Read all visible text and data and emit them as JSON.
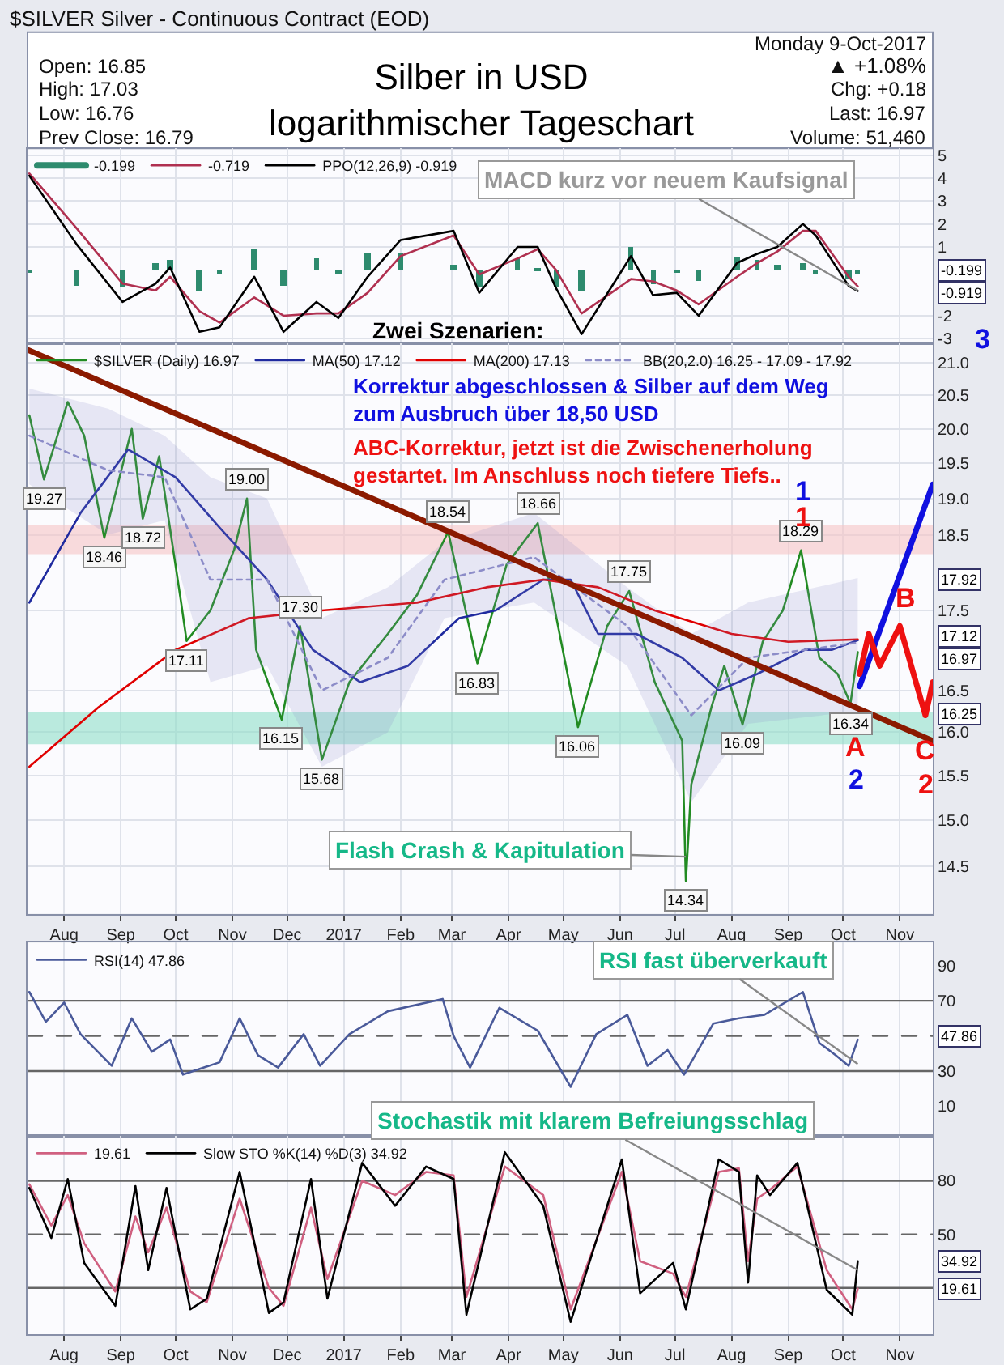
{
  "chart_data": [
    {
      "type": "other",
      "title": "Silber in USD\nlogarithmischer Tageschart",
      "annotations": [
        "$SILVER Silver - Continuous Contract (EOD)",
        "Open: 16.85",
        "High: 17.03",
        "Low: 16.76",
        "Prev Close: 16.79",
        "Monday 9-Oct-2017",
        "▲ +1.08%",
        "Chg: +0.18",
        "Last: 16.97",
        "Volume: 51,460"
      ]
    },
    {
      "type": "line",
      "legend": "top left",
      "grid": true,
      "tick_labels": "y",
      "xlim": [
        "2016-07-12",
        "2017-11-19"
      ],
      "xticks": [
        {
          "value": "2016-08-01",
          "label": null
        },
        {
          "value": "2016-09-01",
          "label": null
        },
        {
          "value": "2016-10-01",
          "label": null
        },
        {
          "value": "2016-11-01",
          "label": null
        },
        {
          "value": "2016-12-01",
          "label": null
        },
        {
          "value": "2017-01-01",
          "label": null
        },
        {
          "value": "2017-02-01",
          "label": null
        },
        {
          "value": "2017-03-01",
          "label": null
        },
        {
          "value": "2017-04-01",
          "label": null
        },
        {
          "value": "2017-05-01",
          "label": null
        },
        {
          "value": "2017-06-01",
          "label": null
        },
        {
          "value": "2017-07-01",
          "label": null
        },
        {
          "value": "2017-08-01",
          "label": null
        },
        {
          "value": "2017-09-01",
          "label": null
        },
        {
          "value": "2017-10-01",
          "label": null
        },
        {
          "value": "2017-11-01",
          "label": null
        }
      ],
      "ylim": [
        -3.2,
        5.3
      ],
      "yticks": [
        -3,
        -2,
        1,
        2,
        3,
        4,
        5
      ],
      "x": [
        "2016-07-13",
        "2016-08-08",
        "2016-09-02",
        "2016-09-20",
        "2016-09-28",
        "2016-10-14",
        "2016-10-25",
        "2016-11-13",
        "2016-11-29",
        "2016-12-17",
        "2016-12-29",
        "2017-01-14",
        "2017-02-01",
        "2017-03-02",
        "2017-03-16",
        "2017-04-06",
        "2017-04-17",
        "2017-04-27",
        "2017-05-11",
        "2017-06-07",
        "2017-06-19",
        "2017-07-02",
        "2017-07-14",
        "2017-08-04",
        "2017-08-15",
        "2017-08-26",
        "2017-09-09",
        "2017-09-16",
        "2017-10-04",
        "2017-10-09"
      ],
      "series": [
        {
          "name": "-0.199",
          "type": "bar",
          "color": "#2e8b6e",
          "values": [
            -0.1,
            -0.7,
            -0.8,
            0.3,
            0.4,
            -0.9,
            -0.2,
            0.9,
            -0.7,
            0.5,
            -0.2,
            0.7,
            0.7,
            0.2,
            -0.8,
            0.5,
            0.1,
            -0.8,
            -0.9,
            1.0,
            -0.6,
            -0.1,
            -0.5,
            0.6,
            0.4,
            0.2,
            0.3,
            -0.2,
            -0.4,
            -0.199
          ]
        },
        {
          "name": "-0.719",
          "color": "#b03050",
          "values": [
            4.2,
            1.8,
            -0.6,
            -0.9,
            -0.3,
            -1.8,
            -2.3,
            -1.2,
            -2.0,
            -1.9,
            -1.9,
            -1.0,
            0.6,
            1.5,
            -0.2,
            0.5,
            0.9,
            0.0,
            -1.9,
            -0.4,
            -0.5,
            -0.9,
            -1.5,
            -0.3,
            0.3,
            0.8,
            1.7,
            1.7,
            -0.3,
            -0.719
          ]
        },
        {
          "name": "PPO(12,26,9) -0.919",
          "color": "#000000",
          "values": [
            4.1,
            1.1,
            -1.4,
            -0.6,
            0.1,
            -2.7,
            -2.5,
            -0.3,
            -2.7,
            -1.4,
            -2.1,
            -0.3,
            1.3,
            1.7,
            -1.0,
            1.0,
            1.0,
            -0.8,
            -2.8,
            0.6,
            -1.1,
            -1.0,
            -2.0,
            0.3,
            0.7,
            1.0,
            2.0,
            1.5,
            -0.7,
            -0.919
          ]
        }
      ],
      "annotations": [
        {
          "text": "MACD kurz vor neuem Kaufsignal",
          "x": "2017-10-09",
          "y": -0.9
        },
        "-0.199",
        "-0.919"
      ]
    },
    {
      "type": "line",
      "log": true,
      "legend": "top left",
      "grid": true,
      "xlim": [
        "2016-07-12",
        "2017-11-19"
      ],
      "xticks": [
        {
          "value": "2016-08-01",
          "label": "Aug"
        },
        {
          "value": "2016-09-01",
          "label": "Sep"
        },
        {
          "value": "2016-10-01",
          "label": "Oct"
        },
        {
          "value": "2016-11-01",
          "label": "Nov"
        },
        {
          "value": "2016-12-01",
          "label": "Dec"
        },
        {
          "value": "2017-01-01",
          "label": "2017"
        },
        {
          "value": "2017-02-01",
          "label": "Feb"
        },
        {
          "value": "2017-03-01",
          "label": "Mar"
        },
        {
          "value": "2017-04-01",
          "label": "Apr"
        },
        {
          "value": "2017-05-01",
          "label": "May"
        },
        {
          "value": "2017-06-01",
          "label": "Jun"
        },
        {
          "value": "2017-07-01",
          "label": "Jul"
        },
        {
          "value": "2017-08-01",
          "label": "Aug"
        },
        {
          "value": "2017-09-01",
          "label": "Sep"
        },
        {
          "value": "2017-10-01",
          "label": "Oct"
        },
        {
          "value": "2017-11-01",
          "label": "Nov"
        }
      ],
      "ylim": [
        14.0,
        21.3
      ],
      "yticks": [
        14.5,
        {
          "value": 15,
          "label": "15.0"
        },
        15.5,
        {
          "value": 16,
          "label": "16.0"
        },
        16.5,
        17.5,
        18.5,
        {
          "value": 19,
          "label": "19.0"
        },
        19.5,
        {
          "value": 20,
          "label": "20.0"
        },
        20.5,
        {
          "value": 21,
          "label": "21.0"
        }
      ],
      "bands": [
        {
          "axis": "y",
          "from": 18.24,
          "to": 18.63,
          "color": "#f6c4c4"
        },
        {
          "axis": "y",
          "from": 15.86,
          "to": 16.24,
          "color": "#8fe0c8"
        }
      ],
      "series": [
        {
          "name": "$SILVER (Daily) 16.97",
          "color": "#228b22",
          "x": [
            "2016-07-13",
            "2016-07-21",
            "2016-08-03",
            "2016-08-12",
            "2016-08-23",
            "2016-09-07",
            "2016-09-13",
            "2016-09-22",
            "2016-10-04",
            "2016-10-07",
            "2016-10-20",
            "2016-11-02",
            "2016-11-09",
            "2016-11-14",
            "2016-11-28",
            "2016-12-08",
            "2016-12-20",
            "2017-01-04",
            "2017-01-25",
            "2017-02-10",
            "2017-02-27",
            "2017-03-15",
            "2017-03-31",
            "2017-04-17",
            "2017-05-09",
            "2017-05-25",
            "2017-06-06",
            "2017-06-20",
            "2017-07-05",
            "2017-07-07",
            "2017-07-10",
            "2017-07-21",
            "2017-07-28",
            "2017-08-07",
            "2017-08-18",
            "2017-08-29",
            "2017-09-08",
            "2017-09-18",
            "2017-09-28",
            "2017-10-05",
            "2017-10-09"
          ],
          "values": [
            20.2,
            19.27,
            20.4,
            19.9,
            18.46,
            20.0,
            18.72,
            19.6,
            17.6,
            17.11,
            17.5,
            18.3,
            19.0,
            17.0,
            16.15,
            17.3,
            15.68,
            16.6,
            17.2,
            17.7,
            18.54,
            16.83,
            18.1,
            18.66,
            16.06,
            17.3,
            17.75,
            16.6,
            15.9,
            14.34,
            15.4,
            16.3,
            16.8,
            16.09,
            17.1,
            17.5,
            18.29,
            16.9,
            16.7,
            16.34,
            16.97
          ]
        },
        {
          "name": "MA(50) 17.12",
          "color": "#1f2a9f",
          "x": [
            "2016-07-13",
            "2016-08-10",
            "2016-09-05",
            "2016-10-01",
            "2016-10-25",
            "2016-11-20",
            "2016-12-15",
            "2017-01-10",
            "2017-02-05",
            "2017-03-05",
            "2017-03-25",
            "2017-04-20",
            "2017-05-05",
            "2017-05-20",
            "2017-06-10",
            "2017-07-05",
            "2017-07-25",
            "2017-08-15",
            "2017-09-10",
            "2017-09-25",
            "2017-10-09"
          ],
          "values": [
            17.6,
            18.8,
            19.7,
            19.3,
            18.6,
            17.9,
            17.0,
            16.6,
            16.8,
            17.4,
            17.5,
            17.9,
            17.9,
            17.2,
            17.2,
            16.9,
            16.5,
            16.7,
            17.0,
            17.0,
            17.12
          ]
        },
        {
          "name": "MA(200) 17.13",
          "color": "#e00000",
          "x": [
            "2016-07-13",
            "2016-08-20",
            "2016-10-01",
            "2016-11-10",
            "2016-12-20",
            "2017-02-10",
            "2017-03-20",
            "2017-04-20",
            "2017-05-20",
            "2017-06-20",
            "2017-08-01",
            "2017-09-01",
            "2017-10-09"
          ],
          "values": [
            15.6,
            16.3,
            17.0,
            17.4,
            17.5,
            17.6,
            17.8,
            17.9,
            17.8,
            17.5,
            17.2,
            17.1,
            17.13
          ]
        },
        {
          "name": "BB(20,2.0) 16.25 - 17.09 - 17.92",
          "color": "#8c8cc8",
          "line_style": "dotted",
          "x": [
            "2016-07-13",
            "2016-08-25",
            "2016-09-25",
            "2016-10-20",
            "2016-11-20",
            "2016-12-20",
            "2017-01-25",
            "2017-02-25",
            "2017-04-15",
            "2017-06-05",
            "2017-07-10",
            "2017-08-10",
            "2017-10-09"
          ],
          "values": [
            19.9,
            19.4,
            19.3,
            17.9,
            17.9,
            16.5,
            16.9,
            17.9,
            18.2,
            17.3,
            16.2,
            16.9,
            17.09
          ],
          "lower": [
            19.2,
            18.5,
            18.7,
            16.6,
            16.8,
            15.6,
            16.0,
            17.4,
            17.6,
            16.8,
            15.2,
            16.1,
            16.25
          ],
          "upper": [
            20.6,
            20.3,
            19.9,
            19.3,
            19.0,
            17.4,
            17.8,
            18.4,
            18.8,
            17.8,
            17.2,
            17.6,
            17.92
          ]
        },
        {
          "color": "#8b1a00",
          "x": [
            "2016-07-12",
            "2017-11-19"
          ],
          "values": [
            21.2,
            15.9
          ]
        },
        {
          "color": "#1010e0",
          "x": [
            "2017-10-10",
            "2017-11-19"
          ],
          "values": [
            16.55,
            19.2
          ]
        },
        {
          "color": "#ee1111",
          "x": [
            "2017-10-10",
            "2017-10-15",
            "2017-10-21",
            "2017-11-01",
            "2017-11-15",
            "2017-11-19"
          ],
          "values": [
            16.7,
            17.2,
            16.8,
            17.3,
            16.2,
            16.6
          ]
        }
      ],
      "annotations": [
        "Korrektur abgeschlossen & Silber auf dem Weg zum Ausbruch über 18,50 USD",
        "ABC-Korrektur, jetzt ist die Zwischenerholung gestartet. Im Anschluss noch tiefere Tiefs..",
        "Zwei Szenarien:",
        {
          "text": "Flash Crash & Kapitulation",
          "x": "2017-07-07",
          "y": 14.6
        },
        {
          "text": "19.27",
          "x": "2016-07-21",
          "y": 19.27
        },
        {
          "text": "18.46",
          "x": "2016-08-23",
          "y": 18.46
        },
        {
          "text": "18.72",
          "x": "2016-09-13",
          "y": 18.72
        },
        {
          "text": "17.11",
          "x": "2016-10-07",
          "y": 17.11
        },
        {
          "text": "19.00",
          "x": "2016-11-09",
          "y": 19.0
        },
        {
          "text": "16.15",
          "x": "2016-11-28",
          "y": 16.15
        },
        {
          "text": "17.30",
          "x": "2016-12-08",
          "y": 17.3
        },
        {
          "text": "15.68",
          "x": "2016-12-20",
          "y": 15.68
        },
        {
          "text": "18.54",
          "x": "2017-02-27",
          "y": 18.54
        },
        {
          "text": "16.83",
          "x": "2017-03-15",
          "y": 16.83
        },
        {
          "text": "18.66",
          "x": "2017-04-17",
          "y": 18.66
        },
        {
          "text": "16.06",
          "x": "2017-05-09",
          "y": 16.06
        },
        {
          "text": "17.75",
          "x": "2017-06-06",
          "y": 17.75
        },
        {
          "text": "14.34",
          "x": "2017-07-07",
          "y": 14.34
        },
        {
          "text": "16.09",
          "x": "2017-08-07",
          "y": 16.09
        },
        {
          "text": "18.29",
          "x": "2017-09-08",
          "y": 18.29
        },
        {
          "text": "16.34",
          "x": "2017-10-05",
          "y": 16.34
        },
        "1",
        "1",
        "A",
        "2",
        "B",
        "C",
        "2",
        "3",
        "17.92",
        "17.12",
        "16.97",
        "16.25"
      ]
    },
    {
      "type": "line",
      "legend": "top left",
      "grid": "x",
      "tick_labels": "y",
      "xlim": [
        "2016-07-12",
        "2017-11-19"
      ],
      "xticks": [
        {
          "value": "2016-08-01",
          "label": null
        },
        {
          "value": "2016-09-01",
          "label": null
        },
        {
          "value": "2016-10-01",
          "label": null
        },
        {
          "value": "2016-11-01",
          "label": null
        },
        {
          "value": "2016-12-01",
          "label": null
        },
        {
          "value": "2017-01-01",
          "label": null
        },
        {
          "value": "2017-02-01",
          "label": null
        },
        {
          "value": "2017-03-01",
          "label": null
        },
        {
          "value": "2017-04-01",
          "label": null
        },
        {
          "value": "2017-05-01",
          "label": null
        },
        {
          "value": "2017-06-01",
          "label": null
        },
        {
          "value": "2017-07-01",
          "label": null
        },
        {
          "value": "2017-08-01",
          "label": null
        },
        {
          "value": "2017-09-01",
          "label": null
        },
        {
          "value": "2017-10-01",
          "label": null
        },
        {
          "value": "2017-11-01",
          "label": null
        }
      ],
      "ylim": [
        -7,
        103
      ],
      "yticks": [
        10,
        30,
        70,
        90
      ],
      "ref_lines": [
        {
          "axis": "y",
          "value": 70,
          "color": "#666666"
        },
        {
          "axis": "y",
          "value": 50,
          "color": "#666666",
          "line_style": "dashed"
        },
        {
          "axis": "y",
          "value": 30,
          "color": "#666666"
        }
      ],
      "x": [
        "2016-07-13",
        "2016-07-22",
        "2016-08-01",
        "2016-08-10",
        "2016-08-27",
        "2016-09-07",
        "2016-09-18",
        "2016-09-28",
        "2016-10-05",
        "2016-10-25",
        "2016-11-05",
        "2016-11-15",
        "2016-11-26",
        "2016-12-10",
        "2016-12-19",
        "2017-01-04",
        "2017-01-25",
        "2017-02-24",
        "2017-03-02",
        "2017-03-11",
        "2017-03-27",
        "2017-04-17",
        "2017-05-05",
        "2017-05-19",
        "2017-06-05",
        "2017-06-16",
        "2017-06-27",
        "2017-07-06",
        "2017-07-22",
        "2017-08-05",
        "2017-08-19",
        "2017-09-09",
        "2017-09-18",
        "2017-09-27",
        "2017-10-04",
        "2017-10-09"
      ],
      "series": [
        {
          "name": "RSI(14) 47.86",
          "color": "#4a5a9a",
          "values": [
            75,
            58,
            69,
            51,
            33,
            60,
            41,
            48,
            28,
            35,
            60,
            39,
            32,
            51,
            33,
            51,
            64,
            71,
            50,
            32,
            66,
            53,
            21,
            51,
            62,
            33,
            42,
            28,
            57,
            60,
            62,
            75,
            46,
            39,
            33,
            47.86
          ]
        }
      ],
      "annotations": [
        {
          "text": "RSI fast überverkauft",
          "x": "2017-10-09",
          "y": 34
        },
        "47.86"
      ]
    },
    {
      "type": "line",
      "legend": "top left",
      "grid": "x",
      "xlim": [
        "2016-07-12",
        "2017-11-19"
      ],
      "xticks": [
        {
          "value": "2016-08-01",
          "label": "Aug"
        },
        {
          "value": "2016-09-01",
          "label": "Sep"
        },
        {
          "value": "2016-10-01",
          "label": "Oct"
        },
        {
          "value": "2016-11-01",
          "label": "Nov"
        },
        {
          "value": "2016-12-01",
          "label": "Dec"
        },
        {
          "value": "2017-01-01",
          "label": "2017"
        },
        {
          "value": "2017-02-01",
          "label": "Feb"
        },
        {
          "value": "2017-03-01",
          "label": "Mar"
        },
        {
          "value": "2017-04-01",
          "label": "Apr"
        },
        {
          "value": "2017-05-01",
          "label": "May"
        },
        {
          "value": "2017-06-01",
          "label": "Jun"
        },
        {
          "value": "2017-07-01",
          "label": "Jul"
        },
        {
          "value": "2017-08-01",
          "label": "Aug"
        },
        {
          "value": "2017-09-01",
          "label": "Sep"
        },
        {
          "value": "2017-10-01",
          "label": "Oct"
        },
        {
          "value": "2017-11-01",
          "label": "Nov"
        }
      ],
      "ylim": [
        -6,
        105
      ],
      "yticks": [
        50,
        80
      ],
      "ref_lines": [
        {
          "axis": "y",
          "value": 80,
          "color": "#666666"
        },
        {
          "axis": "y",
          "value": 50,
          "color": "#666666",
          "line_style": "dashed"
        },
        {
          "axis": "y",
          "value": 20,
          "color": "#666666"
        }
      ],
      "x": [
        "2016-07-13",
        "2016-07-25",
        "2016-08-03",
        "2016-08-12",
        "2016-08-29",
        "2016-09-09",
        "2016-09-16",
        "2016-09-26",
        "2016-10-09",
        "2016-10-18",
        "2016-11-05",
        "2016-11-21",
        "2016-11-29",
        "2016-12-14",
        "2016-12-23",
        "2017-01-11",
        "2017-01-29",
        "2017-02-15",
        "2017-03-02",
        "2017-03-09",
        "2017-03-30",
        "2017-04-20",
        "2017-05-05",
        "2017-06-02",
        "2017-06-12",
        "2017-06-30",
        "2017-07-07",
        "2017-07-25",
        "2017-08-05",
        "2017-08-10",
        "2017-08-15",
        "2017-08-22",
        "2017-09-06",
        "2017-09-22",
        "2017-10-06",
        "2017-10-09"
      ],
      "series": [
        {
          "name": "19.61",
          "color": "#d06080",
          "values": [
            78,
            55,
            72,
            45,
            18,
            60,
            40,
            65,
            18,
            12,
            70,
            20,
            10,
            65,
            25,
            80,
            72,
            85,
            83,
            15,
            88,
            72,
            8,
            85,
            35,
            28,
            15,
            85,
            87,
            35,
            70,
            75,
            88,
            30,
            8,
            19.61
          ]
        },
        {
          "name": "Slow STO %K(14) %D(3) 34.92",
          "color": "#000000",
          "values": [
            76,
            48,
            81,
            34,
            10,
            77,
            30,
            76,
            8,
            14,
            85,
            6,
            12,
            81,
            14,
            90,
            66,
            88,
            81,
            5,
            96,
            66,
            1,
            92,
            17,
            34,
            8,
            92,
            85,
            23,
            83,
            72,
            90,
            19,
            5,
            34.92
          ]
        }
      ],
      "annotations": [
        {
          "text": "Stochastik mit klarem Befreiungsschlag",
          "x": "2017-10-09",
          "y": 30
        },
        "34.92",
        "19.61"
      ]
    }
  ]
}
